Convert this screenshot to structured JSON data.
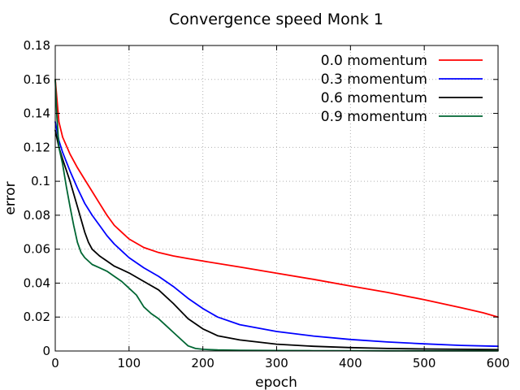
{
  "chart_data": {
    "type": "line",
    "title": "Convergence speed Monk 1",
    "xlabel": "epoch",
    "ylabel": "error",
    "xlim": [
      0,
      600
    ],
    "ylim": [
      0,
      0.18
    ],
    "xticks": [
      0,
      100,
      200,
      300,
      400,
      500,
      600
    ],
    "xtick_labels": [
      "0",
      "100",
      "200",
      "300",
      "400",
      "500",
      "600"
    ],
    "yticks": [
      0,
      0.02,
      0.04,
      0.06,
      0.08,
      0.1,
      0.12,
      0.14,
      0.16,
      0.18
    ],
    "ytick_labels": [
      "0",
      "0.02",
      "0.04",
      "0.06",
      "0.08",
      "0.1",
      "0.12",
      "0.14",
      "0.16",
      "0.18"
    ],
    "grid": true,
    "legend_position": "top-right",
    "series": [
      {
        "name": "0.0 momentum",
        "color": "#ff0000",
        "x": [
          0,
          5,
          10,
          20,
          30,
          40,
          50,
          60,
          70,
          80,
          90,
          100,
          120,
          140,
          160,
          180,
          200,
          250,
          300,
          350,
          400,
          450,
          500,
          550,
          580,
          600
        ],
        "y": [
          0.16,
          0.135,
          0.126,
          0.116,
          0.108,
          0.101,
          0.094,
          0.087,
          0.08,
          0.074,
          0.07,
          0.066,
          0.061,
          0.058,
          0.056,
          0.0545,
          0.053,
          0.0495,
          0.0458,
          0.0422,
          0.0383,
          0.0345,
          0.0302,
          0.0255,
          0.0225,
          0.02
        ]
      },
      {
        "name": "0.3 momentum",
        "color": "#0000ff",
        "x": [
          0,
          5,
          10,
          20,
          30,
          40,
          50,
          60,
          70,
          80,
          90,
          100,
          120,
          140,
          160,
          180,
          200,
          220,
          250,
          300,
          350,
          400,
          450,
          500,
          550,
          600
        ],
        "y": [
          0.135,
          0.124,
          0.117,
          0.106,
          0.096,
          0.087,
          0.08,
          0.074,
          0.068,
          0.063,
          0.059,
          0.055,
          0.049,
          0.044,
          0.038,
          0.031,
          0.025,
          0.02,
          0.0155,
          0.0115,
          0.0088,
          0.0068,
          0.0053,
          0.0042,
          0.0033,
          0.0028
        ]
      },
      {
        "name": "0.6 momentum",
        "color": "#000000",
        "x": [
          0,
          5,
          10,
          20,
          30,
          40,
          45,
          50,
          60,
          70,
          80,
          90,
          100,
          120,
          140,
          160,
          180,
          200,
          220,
          250,
          300,
          350,
          400,
          450,
          500,
          550,
          600
        ],
        "y": [
          0.13,
          0.12,
          0.113,
          0.1,
          0.085,
          0.07,
          0.064,
          0.06,
          0.056,
          0.053,
          0.05,
          0.048,
          0.046,
          0.041,
          0.036,
          0.028,
          0.019,
          0.013,
          0.009,
          0.0065,
          0.004,
          0.0028,
          0.002,
          0.0015,
          0.0012,
          0.001,
          0.0008
        ]
      },
      {
        "name": "0.9 momentum",
        "color": "#006633",
        "x": [
          0,
          2,
          5,
          10,
          15,
          20,
          25,
          30,
          35,
          40,
          50,
          60,
          70,
          80,
          90,
          100,
          110,
          120,
          130,
          140,
          150,
          160,
          170,
          180,
          190,
          200,
          220,
          250,
          300,
          350,
          400,
          450,
          500,
          550,
          600
        ],
        "y": [
          0.16,
          0.14,
          0.12,
          0.11,
          0.097,
          0.085,
          0.074,
          0.064,
          0.058,
          0.055,
          0.051,
          0.049,
          0.047,
          0.044,
          0.041,
          0.037,
          0.033,
          0.026,
          0.022,
          0.019,
          0.015,
          0.011,
          0.007,
          0.003,
          0.0015,
          0.001,
          0.0006,
          0.0004,
          0.0003,
          0.0002,
          0.0002,
          0.0001,
          0.0001,
          0.0001,
          0.0001
        ]
      }
    ]
  }
}
